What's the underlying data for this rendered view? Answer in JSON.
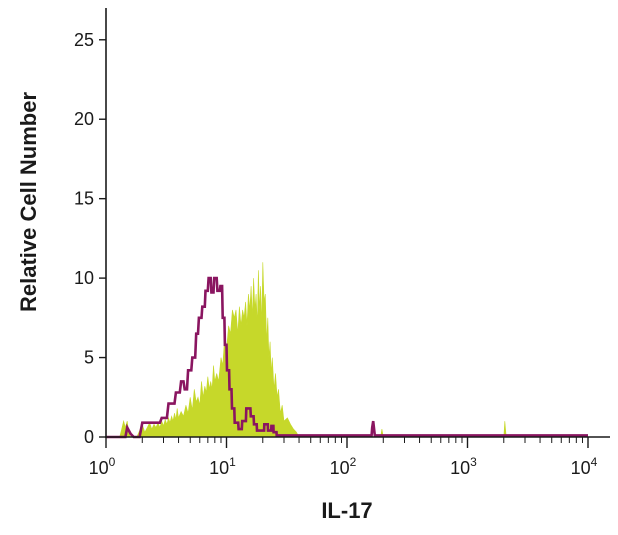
{
  "chart_data": {
    "type": "histogram",
    "xlabel": "IL-17",
    "ylabel": "Relative Cell Number",
    "x_scale": "log",
    "xlim": [
      1,
      10000
    ],
    "ylim": [
      0,
      27
    ],
    "y_ticks": [
      0,
      5,
      10,
      15,
      20,
      25
    ],
    "x_ticks": [
      {
        "value": 1,
        "base": "10",
        "exp": "0"
      },
      {
        "value": 10,
        "base": "10",
        "exp": "1"
      },
      {
        "value": 100,
        "base": "10",
        "exp": "2"
      },
      {
        "value": 1000,
        "base": "10",
        "exp": "3"
      },
      {
        "value": 10000,
        "base": "10",
        "exp": "4"
      }
    ],
    "grid": false,
    "legend": "none",
    "series": [
      {
        "style": "filled",
        "color": "#c6d82a",
        "points": [
          [
            1.0,
            0
          ],
          [
            1.3,
            0
          ],
          [
            1.35,
            0.5
          ],
          [
            1.4,
            1
          ],
          [
            1.45,
            0.6
          ],
          [
            1.5,
            1
          ],
          [
            1.55,
            0.2
          ],
          [
            1.6,
            0
          ],
          [
            1.8,
            0
          ],
          [
            1.9,
            0.4
          ],
          [
            2.0,
            0.8
          ],
          [
            2.1,
            0.3
          ],
          [
            2.2,
            0.6
          ],
          [
            2.3,
            0.9
          ],
          [
            2.4,
            0.5
          ],
          [
            2.5,
            0.8
          ],
          [
            2.6,
            0.6
          ],
          [
            2.7,
            0.9
          ],
          [
            2.8,
            0.6
          ],
          [
            2.9,
            1
          ],
          [
            3.0,
            0.7
          ],
          [
            3.1,
            1.1
          ],
          [
            3.2,
            0.8
          ],
          [
            3.3,
            1.2
          ],
          [
            3.4,
            0.9
          ],
          [
            3.5,
            1.3
          ],
          [
            3.6,
            1
          ],
          [
            3.7,
            1.5
          ],
          [
            3.8,
            1.1
          ],
          [
            3.9,
            1.8
          ],
          [
            4.0,
            1.2
          ],
          [
            4.2,
            1.6
          ],
          [
            4.4,
            1.3
          ],
          [
            4.6,
            2
          ],
          [
            4.8,
            1.5
          ],
          [
            5.0,
            2.5
          ],
          [
            5.2,
            1.7
          ],
          [
            5.4,
            3
          ],
          [
            5.6,
            2.2
          ],
          [
            5.8,
            2.5
          ],
          [
            6.0,
            2
          ],
          [
            6.2,
            3.5
          ],
          [
            6.4,
            2.5
          ],
          [
            6.6,
            3.2
          ],
          [
            6.8,
            2.8
          ],
          [
            7.0,
            3.8
          ],
          [
            7.2,
            3
          ],
          [
            7.4,
            3.5
          ],
          [
            7.6,
            3
          ],
          [
            7.8,
            4.5
          ],
          [
            8.0,
            3.5
          ],
          [
            8.3,
            4
          ],
          [
            8.6,
            3.5
          ],
          [
            9.0,
            5
          ],
          [
            9.3,
            4.5
          ],
          [
            9.6,
            6
          ],
          [
            10.0,
            5.5
          ],
          [
            10.4,
            7
          ],
          [
            10.8,
            6.5
          ],
          [
            11.2,
            8
          ],
          [
            11.6,
            7.5
          ],
          [
            12.0,
            8
          ],
          [
            12.4,
            6.5
          ],
          [
            12.8,
            8.2
          ],
          [
            13.2,
            7
          ],
          [
            13.6,
            8
          ],
          [
            14.0,
            7.5
          ],
          [
            14.4,
            8.5
          ],
          [
            14.8,
            7
          ],
          [
            15.2,
            9
          ],
          [
            15.6,
            8
          ],
          [
            16.0,
            9.5
          ],
          [
            16.4,
            7.5
          ],
          [
            16.8,
            10
          ],
          [
            17.2,
            8
          ],
          [
            17.6,
            9
          ],
          [
            18.0,
            7
          ],
          [
            18.4,
            10.5
          ],
          [
            18.8,
            8
          ],
          [
            19.2,
            9.5
          ],
          [
            19.6,
            7
          ],
          [
            20.0,
            11
          ],
          [
            20.5,
            8.5
          ],
          [
            21.0,
            9
          ],
          [
            21.5,
            6
          ],
          [
            22.0,
            7.5
          ],
          [
            22.5,
            5
          ],
          [
            23.0,
            6
          ],
          [
            23.5,
            4
          ],
          [
            24.0,
            5
          ],
          [
            24.8,
            3
          ],
          [
            25.5,
            4
          ],
          [
            26.3,
            2.5
          ],
          [
            27.0,
            3
          ],
          [
            28.0,
            1.5
          ],
          [
            29.0,
            2
          ],
          [
            30.0,
            1
          ],
          [
            32.0,
            1.2
          ],
          [
            34.0,
            0.8
          ],
          [
            36.0,
            0.5
          ],
          [
            38.0,
            0.3
          ],
          [
            40.0,
            0
          ],
          [
            190,
            0
          ],
          [
            195,
            0.5
          ],
          [
            200,
            0
          ],
          [
            2000,
            0
          ],
          [
            2040,
            1
          ],
          [
            2080,
            0.3
          ],
          [
            2100,
            0
          ],
          [
            10000,
            0
          ]
        ]
      },
      {
        "style": "outline",
        "color": "#8a1560",
        "points": [
          [
            1.0,
            0
          ],
          [
            1.45,
            0
          ],
          [
            1.5,
            0.6
          ],
          [
            1.6,
            0.2
          ],
          [
            1.7,
            0
          ],
          [
            1.9,
            0
          ],
          [
            2.0,
            0.9
          ],
          [
            2.8,
            0.9
          ],
          [
            2.9,
            1.2
          ],
          [
            3.2,
            1.2
          ],
          [
            3.3,
            2.1
          ],
          [
            3.7,
            2.1
          ],
          [
            3.8,
            2.8
          ],
          [
            4.1,
            2.8
          ],
          [
            4.2,
            3.5
          ],
          [
            4.4,
            3.5
          ],
          [
            4.5,
            3
          ],
          [
            4.7,
            3
          ],
          [
            4.8,
            4.2
          ],
          [
            5.1,
            4.2
          ],
          [
            5.2,
            5
          ],
          [
            5.5,
            5
          ],
          [
            5.6,
            6.5
          ],
          [
            5.8,
            6.5
          ],
          [
            5.9,
            7.5
          ],
          [
            6.2,
            7.5
          ],
          [
            6.3,
            8.2
          ],
          [
            6.6,
            8.2
          ],
          [
            6.7,
            9.2
          ],
          [
            7.0,
            9.2
          ],
          [
            7.1,
            10
          ],
          [
            7.4,
            10
          ],
          [
            7.5,
            9.1
          ],
          [
            7.8,
            9.1
          ],
          [
            7.9,
            10
          ],
          [
            8.3,
            10
          ],
          [
            8.4,
            9.2
          ],
          [
            8.8,
            9.2
          ],
          [
            8.9,
            9.5
          ],
          [
            9.2,
            9.5
          ],
          [
            9.3,
            7.5
          ],
          [
            9.6,
            7.5
          ],
          [
            9.7,
            5.8
          ],
          [
            10.0,
            5.8
          ],
          [
            10.1,
            4.2
          ],
          [
            10.5,
            4.2
          ],
          [
            10.6,
            3
          ],
          [
            11.0,
            3
          ],
          [
            11.1,
            1.8
          ],
          [
            11.6,
            1.8
          ],
          [
            11.7,
            0.9
          ],
          [
            12.5,
            0.9
          ],
          [
            12.6,
            0.5
          ],
          [
            13.4,
            0.5
          ],
          [
            13.5,
            1
          ],
          [
            14.5,
            1
          ],
          [
            14.6,
            1.8
          ],
          [
            15.8,
            1.8
          ],
          [
            15.9,
            1.3
          ],
          [
            16.8,
            1.3
          ],
          [
            16.9,
            0.8
          ],
          [
            17.8,
            0.8
          ],
          [
            17.9,
            0.4
          ],
          [
            20.5,
            0.4
          ],
          [
            20.6,
            0.8
          ],
          [
            22.0,
            0.8
          ],
          [
            22.1,
            0.4
          ],
          [
            23.5,
            0.4
          ],
          [
            23.6,
            0.7
          ],
          [
            24.5,
            0.7
          ],
          [
            24.6,
            0.3
          ],
          [
            26.0,
            0.3
          ],
          [
            26.1,
            0.1
          ],
          [
            160,
            0.1
          ],
          [
            162,
            0.6
          ],
          [
            165,
            1
          ],
          [
            168,
            0.5
          ],
          [
            170,
            0.1
          ],
          [
            10000,
            0.1
          ]
        ]
      }
    ]
  }
}
